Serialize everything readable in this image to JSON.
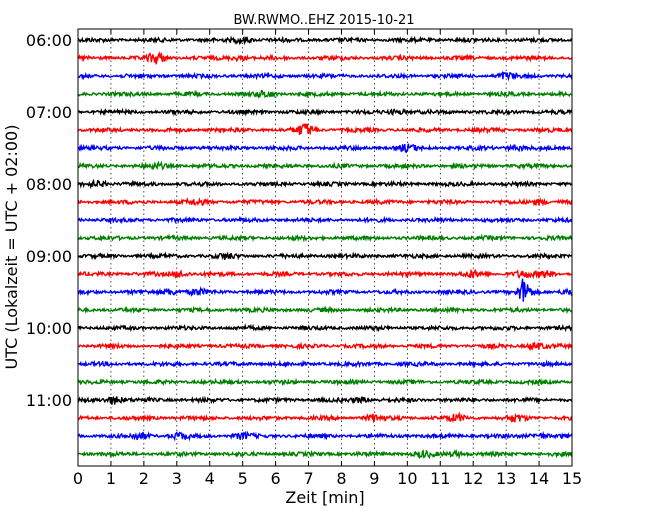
{
  "chart_data": {
    "type": "line",
    "title": "BW.RWMO..EHZ 2015-10-21",
    "xlabel": "Zeit  [min]",
    "ylabel": "UTC (Lokalzeit = UTC + 02:00)",
    "xlim": [
      0,
      15
    ],
    "x_ticks": [
      "0",
      "1",
      "2",
      "3",
      "4",
      "5",
      "6",
      "7",
      "8",
      "9",
      "10",
      "11",
      "12",
      "13",
      "14",
      "15"
    ],
    "y_ticks": [
      "06:00",
      "07:00",
      "08:00",
      "09:00",
      "10:00",
      "11:00"
    ],
    "grid": true,
    "trace_colors": [
      "#000000",
      "#ff0000",
      "#0000ff",
      "#008000"
    ],
    "traces": [
      {
        "start": "06:00",
        "color": "#000000",
        "events": [
          {
            "t": 5.0,
            "amp": 0.8
          }
        ]
      },
      {
        "start": "06:15",
        "color": "#ff0000",
        "events": [
          {
            "t": 2.4,
            "amp": 1.6
          },
          {
            "t": 4.9,
            "amp": 0.6
          }
        ]
      },
      {
        "start": "06:30",
        "color": "#0000ff",
        "events": [
          {
            "t": 13.0,
            "amp": 0.8
          }
        ]
      },
      {
        "start": "06:45",
        "color": "#008000",
        "events": [
          {
            "t": 5.7,
            "amp": 0.8
          }
        ]
      },
      {
        "start": "07:00",
        "color": "#000000",
        "events": [
          {
            "t": 9.7,
            "amp": 0.6
          }
        ]
      },
      {
        "start": "07:15",
        "color": "#ff0000",
        "events": [
          {
            "t": 6.9,
            "amp": 1.7
          }
        ]
      },
      {
        "start": "07:30",
        "color": "#0000ff",
        "events": [
          {
            "t": 10.0,
            "amp": 0.9
          },
          {
            "t": 13.3,
            "amp": 0.6
          }
        ]
      },
      {
        "start": "07:45",
        "color": "#008000",
        "events": [
          {
            "t": 2.4,
            "amp": 0.6
          }
        ]
      },
      {
        "start": "08:00",
        "color": "#000000",
        "events": [
          {
            "t": 0.6,
            "amp": 0.8
          }
        ]
      },
      {
        "start": "08:15",
        "color": "#ff0000",
        "events": [
          {
            "t": 3.6,
            "amp": 0.6
          },
          {
            "t": 14.0,
            "amp": 0.7
          }
        ]
      },
      {
        "start": "08:30",
        "color": "#0000ff",
        "events": []
      },
      {
        "start": "08:45",
        "color": "#008000",
        "events": []
      },
      {
        "start": "09:00",
        "color": "#000000",
        "events": [
          {
            "t": 4.5,
            "amp": 0.6
          }
        ]
      },
      {
        "start": "09:15",
        "color": "#ff0000",
        "events": [
          {
            "t": 3.1,
            "amp": 0.9
          },
          {
            "t": 12.0,
            "amp": 0.8
          },
          {
            "t": 13.5,
            "amp": 0.8
          },
          {
            "t": 14.2,
            "amp": 0.8
          }
        ]
      },
      {
        "start": "09:30",
        "color": "#0000ff",
        "events": [
          {
            "t": 2.8,
            "amp": 0.8
          },
          {
            "t": 3.6,
            "amp": 0.7
          },
          {
            "t": 13.55,
            "amp": 4.2
          },
          {
            "t": 14.9,
            "amp": 0.7
          }
        ]
      },
      {
        "start": "09:45",
        "color": "#008000",
        "events": []
      },
      {
        "start": "10:00",
        "color": "#000000",
        "events": []
      },
      {
        "start": "10:15",
        "color": "#ff0000",
        "events": [
          {
            "t": 13.9,
            "amp": 0.8
          }
        ]
      },
      {
        "start": "10:30",
        "color": "#0000ff",
        "events": []
      },
      {
        "start": "10:45",
        "color": "#008000",
        "events": []
      },
      {
        "start": "11:00",
        "color": "#000000",
        "events": [
          {
            "t": 1.1,
            "amp": 1.2
          },
          {
            "t": 8.6,
            "amp": 0.7
          }
        ]
      },
      {
        "start": "11:15",
        "color": "#ff0000",
        "events": [
          {
            "t": 9.0,
            "amp": 0.9
          },
          {
            "t": 11.5,
            "amp": 0.8
          },
          {
            "t": 13.3,
            "amp": 0.8
          }
        ]
      },
      {
        "start": "11:30",
        "color": "#0000ff",
        "events": [
          {
            "t": 1.9,
            "amp": 0.9
          },
          {
            "t": 3.1,
            "amp": 0.8
          },
          {
            "t": 5.0,
            "amp": 0.7
          },
          {
            "t": 14.0,
            "amp": 0.7
          }
        ]
      },
      {
        "start": "11:45",
        "color": "#008000",
        "events": [
          {
            "t": 10.5,
            "amp": 0.7
          },
          {
            "t": 11.5,
            "amp": 0.6
          }
        ]
      }
    ]
  }
}
